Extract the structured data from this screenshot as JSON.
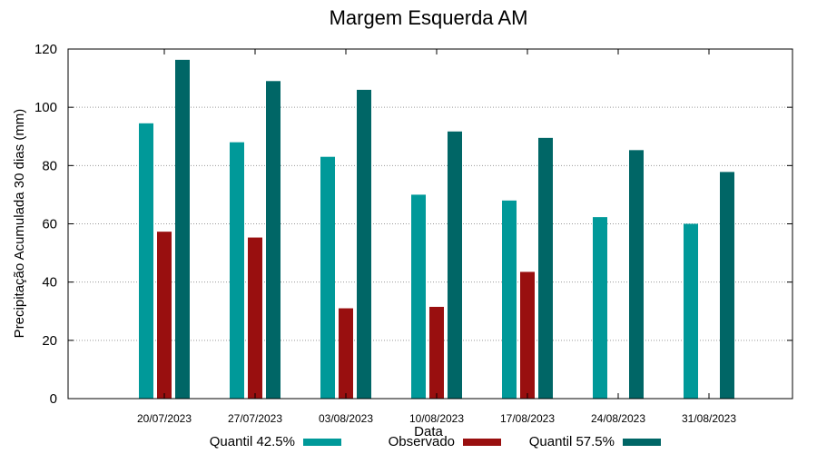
{
  "chart_data": {
    "type": "bar",
    "title": "Margem Esquerda AM",
    "xlabel": "Data",
    "ylabel": "Precipitação Acumulada 30 dias (mm)",
    "ylim": [
      0,
      120
    ],
    "yticks": [
      0,
      20,
      40,
      60,
      80,
      100,
      120
    ],
    "grid": true,
    "legend_position": "bottom",
    "categories": [
      "20/07/2023",
      "27/07/2023",
      "03/08/2023",
      "10/08/2023",
      "17/08/2023",
      "24/08/2023",
      "31/08/2023"
    ],
    "series": [
      {
        "name": "Quantil 42.5%",
        "color": "#009999",
        "values": [
          94.5,
          88,
          83,
          70,
          68,
          62.3,
          60
        ]
      },
      {
        "name": "Observado",
        "color": "#990f0f",
        "values": [
          57.3,
          55.3,
          31,
          31.5,
          43.5,
          null,
          null
        ]
      },
      {
        "name": "Quantil 57.5%",
        "color": "#006666",
        "values": [
          116.3,
          109,
          106,
          91.7,
          89.5,
          85.3,
          77.8
        ]
      }
    ]
  }
}
